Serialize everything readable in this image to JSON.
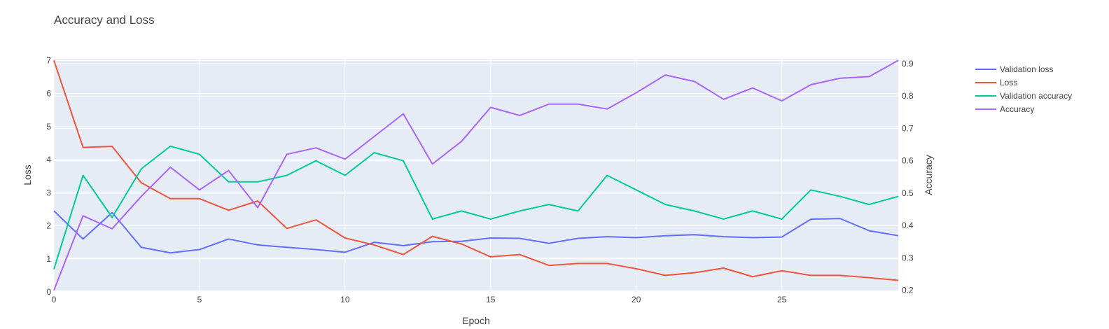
{
  "chart_data": {
    "type": "line",
    "title": "Accuracy and Loss",
    "xlabel": "Epoch",
    "ylabel": "Loss",
    "y2label": "Accuracy",
    "xlim": [
      0,
      29
    ],
    "ylim": [
      0,
      7.05
    ],
    "y2lim": [
      0.195,
      0.915
    ],
    "x_ticks": [
      0,
      5,
      10,
      15,
      20,
      25
    ],
    "y_ticks": [
      0,
      1,
      2,
      3,
      4,
      5,
      6,
      7
    ],
    "y2_ticks": [
      0.2,
      0.3,
      0.4,
      0.5,
      0.6,
      0.7,
      0.8,
      0.9
    ],
    "grid": true,
    "legend_position": "top-right",
    "x": [
      0,
      1,
      2,
      3,
      4,
      5,
      6,
      7,
      8,
      9,
      10,
      11,
      12,
      13,
      14,
      15,
      16,
      17,
      18,
      19,
      20,
      21,
      22,
      23,
      24,
      25,
      26,
      27,
      28,
      29
    ],
    "series": [
      {
        "name": "Validation loss",
        "axis": "y",
        "color": "#636efa",
        "values": [
          2.45,
          1.6,
          2.4,
          1.35,
          1.18,
          1.28,
          1.6,
          1.42,
          1.35,
          1.28,
          1.2,
          1.5,
          1.4,
          1.52,
          1.53,
          1.63,
          1.62,
          1.47,
          1.62,
          1.67,
          1.64,
          1.7,
          1.73,
          1.67,
          1.64,
          1.66,
          2.2,
          2.22,
          1.85,
          1.7
        ]
      },
      {
        "name": "Loss",
        "axis": "y",
        "color": "#ef553b",
        "values": [
          7.0,
          4.37,
          4.4,
          3.3,
          2.82,
          2.82,
          2.47,
          2.75,
          1.92,
          2.18,
          1.63,
          1.42,
          1.13,
          1.68,
          1.45,
          1.06,
          1.13,
          0.8,
          0.86,
          0.86,
          0.7,
          0.5,
          0.58,
          0.72,
          0.46,
          0.64,
          0.5,
          0.5,
          0.43,
          0.35
        ]
      },
      {
        "name": "Validation accuracy",
        "axis": "y2",
        "color": "#00cc96",
        "values": [
          0.265,
          0.555,
          0.425,
          0.575,
          0.645,
          0.62,
          0.535,
          0.535,
          0.555,
          0.6,
          0.555,
          0.625,
          0.6,
          0.42,
          0.445,
          0.42,
          0.445,
          0.465,
          0.445,
          0.555,
          0.51,
          0.465,
          0.445,
          0.42,
          0.445,
          0.42,
          0.51,
          0.49,
          0.465,
          0.49
        ]
      },
      {
        "name": "Accuracy",
        "axis": "y2",
        "color": "#ab63fa",
        "values": [
          0.2,
          0.43,
          0.39,
          0.49,
          0.58,
          0.51,
          0.57,
          0.455,
          0.62,
          0.64,
          0.605,
          0.675,
          0.745,
          0.59,
          0.66,
          0.765,
          0.74,
          0.775,
          0.775,
          0.76,
          0.81,
          0.865,
          0.845,
          0.79,
          0.825,
          0.785,
          0.835,
          0.855,
          0.86,
          0.91
        ]
      }
    ]
  }
}
